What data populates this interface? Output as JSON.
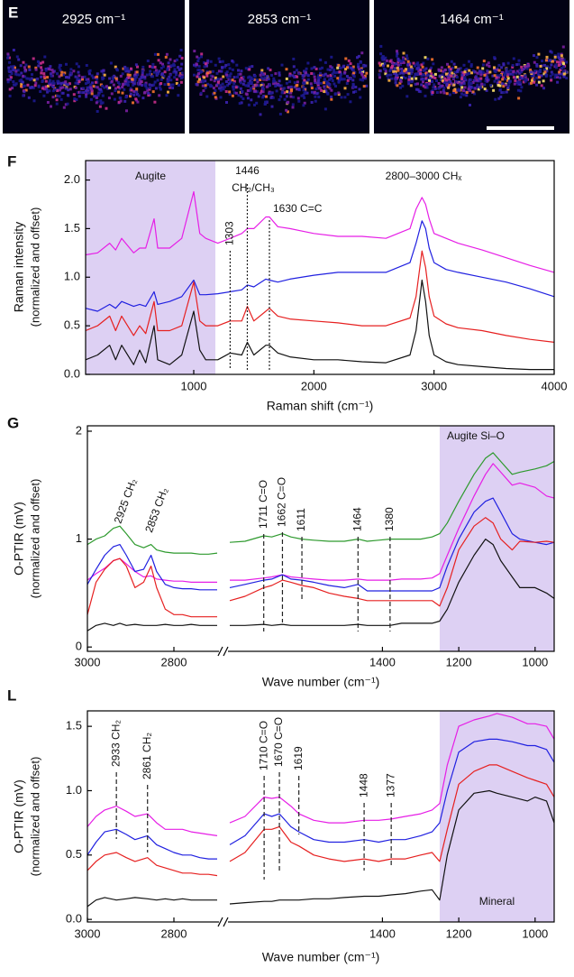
{
  "panel_e": {
    "panel": "E",
    "images": [
      {
        "label": "2925 cm⁻¹"
      },
      {
        "label": "2853 cm⁻¹"
      },
      {
        "label": "1464 cm⁻¹"
      }
    ]
  },
  "chart_data": [
    {
      "type": "line",
      "panel": "F",
      "xlabel": "Raman shift (cm⁻¹)",
      "ylabel": [
        "Raman intensity",
        "(normalized and offset)"
      ],
      "xlim": [
        100,
        4000
      ],
      "xticks": [
        1000,
        2000,
        3000,
        4000
      ],
      "ylim": [
        0,
        2.2
      ],
      "yticks": [
        {
          "value": 0,
          "label": "0.0"
        },
        {
          "value": 0.5,
          "label": "0.5"
        },
        {
          "value": 1,
          "label": "1.0"
        },
        {
          "value": 1.5,
          "label": "1.5"
        },
        {
          "value": 2,
          "label": "2.0"
        }
      ],
      "shade": {
        "xlim": [
          100,
          1180
        ],
        "label": "Augite",
        "color": "#ddd0f3"
      },
      "annotations": [
        {
          "text": "1303",
          "x": 1303
        },
        {
          "text": "1446",
          "x": 1446
        },
        {
          "text": "CH₂/CH₃"
        },
        {
          "text": "1630 C=C",
          "x": 1630
        },
        {
          "text": "2800–3000 CHₓ"
        }
      ],
      "x": [
        100,
        200,
        300,
        350,
        400,
        500,
        550,
        600,
        670,
        700,
        800,
        900,
        1000,
        1050,
        1100,
        1200,
        1303,
        1400,
        1446,
        1500,
        1600,
        1630,
        1700,
        1800,
        2000,
        2200,
        2400,
        2600,
        2800,
        2850,
        2900,
        2930,
        2960,
        3000,
        3100,
        3200,
        3400,
        3600,
        3800,
        4000
      ],
      "series": [
        {
          "color": "#e61ee6",
          "values": [
            1.23,
            1.25,
            1.35,
            1.28,
            1.4,
            1.25,
            1.3,
            1.3,
            1.6,
            1.3,
            1.3,
            1.4,
            1.88,
            1.45,
            1.4,
            1.35,
            1.4,
            1.45,
            1.5,
            1.5,
            1.62,
            1.62,
            1.52,
            1.5,
            1.45,
            1.42,
            1.42,
            1.4,
            1.5,
            1.7,
            1.82,
            1.75,
            1.6,
            1.45,
            1.4,
            1.35,
            1.28,
            1.2,
            1.12,
            1.05
          ]
        },
        {
          "color": "#2020e0",
          "values": [
            0.68,
            0.65,
            0.72,
            0.68,
            0.75,
            0.7,
            0.72,
            0.7,
            0.85,
            0.72,
            0.75,
            0.8,
            0.97,
            0.82,
            0.82,
            0.83,
            0.85,
            0.87,
            0.92,
            0.9,
            0.98,
            0.97,
            0.95,
            0.98,
            1.02,
            1.05,
            1.05,
            1.05,
            1.15,
            1.35,
            1.58,
            1.5,
            1.3,
            1.15,
            1.08,
            1.05,
            1.0,
            0.95,
            0.88,
            0.8
          ]
        },
        {
          "color": "#e62020",
          "values": [
            0.45,
            0.5,
            0.6,
            0.45,
            0.6,
            0.4,
            0.5,
            0.42,
            0.75,
            0.45,
            0.45,
            0.5,
            0.95,
            0.55,
            0.5,
            0.5,
            0.55,
            0.55,
            0.7,
            0.55,
            0.65,
            0.68,
            0.6,
            0.57,
            0.55,
            0.53,
            0.5,
            0.5,
            0.58,
            0.8,
            1.27,
            1.1,
            0.8,
            0.6,
            0.52,
            0.48,
            0.45,
            0.4,
            0.36,
            0.33
          ]
        },
        {
          "color": "#111111",
          "values": [
            0.15,
            0.2,
            0.3,
            0.15,
            0.3,
            0.1,
            0.25,
            0.12,
            0.5,
            0.15,
            0.1,
            0.2,
            0.65,
            0.25,
            0.15,
            0.15,
            0.22,
            0.2,
            0.33,
            0.2,
            0.3,
            0.3,
            0.22,
            0.18,
            0.15,
            0.15,
            0.13,
            0.12,
            0.2,
            0.45,
            0.97,
            0.75,
            0.4,
            0.2,
            0.13,
            0.1,
            0.08,
            0.06,
            0.05,
            0.05
          ]
        }
      ]
    },
    {
      "type": "line",
      "panel": "G",
      "xlabel": "Wave number (cm⁻¹)",
      "ylabel": [
        "O-PTIR (mV)",
        "(normalized and offset)"
      ],
      "xlim": [
        [
          3000,
          2700
        ],
        [
          1800,
          950
        ]
      ],
      "xticks": [
        3000,
        2800,
        1400,
        1200,
        1000
      ],
      "ylim": [
        -0.04,
        2.05
      ],
      "yticks": [
        0,
        1,
        2
      ],
      "shade": {
        "xlim": [
          1250,
          950
        ],
        "label": "Augite Si–O",
        "color": "#ddd0f3"
      },
      "annotations": [
        {
          "text": "2925 CH₂",
          "x": 2925
        },
        {
          "text": "2853 CH₂",
          "x": 2853
        },
        {
          "text": "1711 C=O",
          "x": 1711
        },
        {
          "text": "1662 C=O",
          "x": 1662
        },
        {
          "text": "1611",
          "x": 1611
        },
        {
          "text": "1464",
          "x": 1464
        },
        {
          "text": "1380",
          "x": 1380
        }
      ],
      "x": [
        3000,
        2980,
        2960,
        2940,
        2925,
        2910,
        2890,
        2870,
        2853,
        2840,
        2820,
        2800,
        2780,
        2760,
        2740,
        2720,
        2700,
        1800,
        1760,
        1711,
        1690,
        1662,
        1640,
        1611,
        1580,
        1540,
        1500,
        1464,
        1440,
        1410,
        1380,
        1350,
        1300,
        1270,
        1250,
        1230,
        1200,
        1160,
        1130,
        1110,
        1090,
        1060,
        1040,
        1000,
        970,
        950
      ],
      "series": [
        {
          "color": "#2e9a2e",
          "values": [
            0.95,
            1.0,
            1.03,
            1.1,
            1.12,
            1.05,
            0.95,
            0.92,
            0.95,
            0.9,
            0.88,
            0.87,
            0.87,
            0.87,
            0.86,
            0.86,
            0.87,
            0.97,
            0.98,
            1.03,
            1.02,
            1.05,
            1.02,
            1.0,
            0.99,
            0.98,
            0.98,
            1.0,
            0.98,
            0.99,
            1.0,
            1.0,
            1.0,
            1.02,
            1.05,
            1.15,
            1.35,
            1.6,
            1.75,
            1.8,
            1.72,
            1.6,
            1.62,
            1.65,
            1.68,
            1.72
          ]
        },
        {
          "color": "#e61ee6",
          "values": [
            0.62,
            0.68,
            0.73,
            0.8,
            0.82,
            0.77,
            0.7,
            0.65,
            0.66,
            0.63,
            0.62,
            0.61,
            0.61,
            0.6,
            0.6,
            0.6,
            0.6,
            0.62,
            0.62,
            0.64,
            0.65,
            0.67,
            0.65,
            0.64,
            0.63,
            0.62,
            0.62,
            0.63,
            0.62,
            0.62,
            0.62,
            0.63,
            0.63,
            0.64,
            0.68,
            0.85,
            1.1,
            1.4,
            1.6,
            1.7,
            1.62,
            1.5,
            1.52,
            1.48,
            1.4,
            1.38
          ]
        },
        {
          "color": "#2020e0",
          "values": [
            0.58,
            0.72,
            0.85,
            0.93,
            0.95,
            0.85,
            0.7,
            0.72,
            0.85,
            0.7,
            0.58,
            0.55,
            0.54,
            0.54,
            0.53,
            0.53,
            0.53,
            0.55,
            0.58,
            0.62,
            0.63,
            0.67,
            0.63,
            0.62,
            0.6,
            0.57,
            0.55,
            0.58,
            0.52,
            0.52,
            0.52,
            0.52,
            0.52,
            0.52,
            0.55,
            0.75,
            1.0,
            1.25,
            1.35,
            1.38,
            1.25,
            1.05,
            1.0,
            0.97,
            0.95,
            0.97
          ]
        },
        {
          "color": "#e62020",
          "values": [
            0.3,
            0.6,
            0.72,
            0.8,
            0.82,
            0.75,
            0.55,
            0.6,
            0.75,
            0.55,
            0.35,
            0.3,
            0.3,
            0.28,
            0.28,
            0.28,
            0.28,
            0.43,
            0.47,
            0.55,
            0.57,
            0.62,
            0.6,
            0.57,
            0.55,
            0.5,
            0.47,
            0.45,
            0.43,
            0.43,
            0.43,
            0.43,
            0.43,
            0.43,
            0.38,
            0.55,
            0.9,
            1.12,
            1.2,
            1.15,
            1.0,
            0.9,
            0.98,
            0.97,
            0.98,
            0.97
          ]
        },
        {
          "color": "#111111",
          "values": [
            0.15,
            0.2,
            0.22,
            0.2,
            0.22,
            0.2,
            0.21,
            0.2,
            0.2,
            0.2,
            0.21,
            0.2,
            0.2,
            0.21,
            0.2,
            0.2,
            0.2,
            0.2,
            0.2,
            0.21,
            0.2,
            0.21,
            0.2,
            0.2,
            0.2,
            0.2,
            0.2,
            0.21,
            0.2,
            0.2,
            0.2,
            0.22,
            0.22,
            0.22,
            0.24,
            0.35,
            0.6,
            0.85,
            1.0,
            0.95,
            0.8,
            0.65,
            0.55,
            0.55,
            0.5,
            0.45
          ]
        }
      ]
    },
    {
      "type": "line",
      "panel": "L",
      "xlabel": "Wave number (cm⁻¹)",
      "ylabel": [
        "O-PTIR (mV)",
        "(normalized and offset)"
      ],
      "xlim": [
        [
          3000,
          2700
        ],
        [
          1800,
          950
        ]
      ],
      "xticks": [
        3000,
        2800,
        1400,
        1200,
        1000
      ],
      "ylim": [
        -0.02,
        1.62
      ],
      "yticks": [
        {
          "value": 0,
          "label": "0.0"
        },
        {
          "value": 0.5,
          "label": "0.5"
        },
        {
          "value": 1,
          "label": "1.0"
        },
        {
          "value": 1.5,
          "label": "1.5"
        }
      ],
      "shade": {
        "xlim": [
          1250,
          950
        ],
        "label": "Mineral",
        "color": "#ddd0f3"
      },
      "annotations": [
        {
          "text": "2933 CH₂",
          "x": 2933
        },
        {
          "text": "2861 CH₂",
          "x": 2861
        },
        {
          "text": "1710 C=O",
          "x": 1710
        },
        {
          "text": "1670 C=O",
          "x": 1670
        },
        {
          "text": "1619",
          "x": 1619
        },
        {
          "text": "1448",
          "x": 1448
        },
        {
          "text": "1377",
          "x": 1377
        }
      ],
      "x": [
        3000,
        2980,
        2960,
        2933,
        2910,
        2890,
        2861,
        2840,
        2820,
        2800,
        2780,
        2760,
        2740,
        2720,
        2700,
        1800,
        1760,
        1710,
        1690,
        1670,
        1640,
        1619,
        1580,
        1540,
        1500,
        1448,
        1410,
        1377,
        1340,
        1300,
        1270,
        1250,
        1230,
        1200,
        1160,
        1120,
        1100,
        1060,
        1020,
        1000,
        970,
        950
      ],
      "series": [
        {
          "color": "#e61ee6",
          "values": [
            0.72,
            0.8,
            0.85,
            0.88,
            0.84,
            0.8,
            0.82,
            0.75,
            0.7,
            0.7,
            0.7,
            0.68,
            0.67,
            0.66,
            0.65,
            0.75,
            0.8,
            0.95,
            0.94,
            0.95,
            0.88,
            0.82,
            0.77,
            0.75,
            0.75,
            0.77,
            0.77,
            0.78,
            0.8,
            0.82,
            0.85,
            0.9,
            1.2,
            1.5,
            1.55,
            1.58,
            1.6,
            1.57,
            1.52,
            1.52,
            1.5,
            1.4
          ]
        },
        {
          "color": "#2020e0",
          "values": [
            0.5,
            0.6,
            0.68,
            0.7,
            0.66,
            0.62,
            0.65,
            0.58,
            0.55,
            0.52,
            0.5,
            0.5,
            0.48,
            0.47,
            0.47,
            0.58,
            0.65,
            0.82,
            0.8,
            0.82,
            0.72,
            0.68,
            0.62,
            0.6,
            0.6,
            0.62,
            0.6,
            0.62,
            0.62,
            0.65,
            0.68,
            0.75,
            1.0,
            1.3,
            1.38,
            1.4,
            1.4,
            1.38,
            1.35,
            1.35,
            1.32,
            1.22
          ]
        },
        {
          "color": "#e62020",
          "values": [
            0.38,
            0.45,
            0.5,
            0.52,
            0.48,
            0.45,
            0.48,
            0.42,
            0.4,
            0.38,
            0.36,
            0.36,
            0.35,
            0.35,
            0.34,
            0.45,
            0.52,
            0.7,
            0.7,
            0.72,
            0.6,
            0.57,
            0.5,
            0.47,
            0.45,
            0.47,
            0.45,
            0.47,
            0.47,
            0.5,
            0.52,
            0.45,
            0.7,
            1.05,
            1.15,
            1.2,
            1.2,
            1.15,
            1.1,
            1.08,
            1.05,
            0.95
          ]
        },
        {
          "color": "#111111",
          "values": [
            0.1,
            0.15,
            0.17,
            0.15,
            0.16,
            0.17,
            0.16,
            0.15,
            0.16,
            0.15,
            0.16,
            0.15,
            0.15,
            0.15,
            0.15,
            0.12,
            0.13,
            0.14,
            0.14,
            0.15,
            0.15,
            0.15,
            0.16,
            0.16,
            0.17,
            0.18,
            0.18,
            0.19,
            0.2,
            0.22,
            0.23,
            0.15,
            0.5,
            0.85,
            0.98,
            1.0,
            0.98,
            0.95,
            0.92,
            0.95,
            0.92,
            0.75
          ]
        }
      ]
    }
  ]
}
